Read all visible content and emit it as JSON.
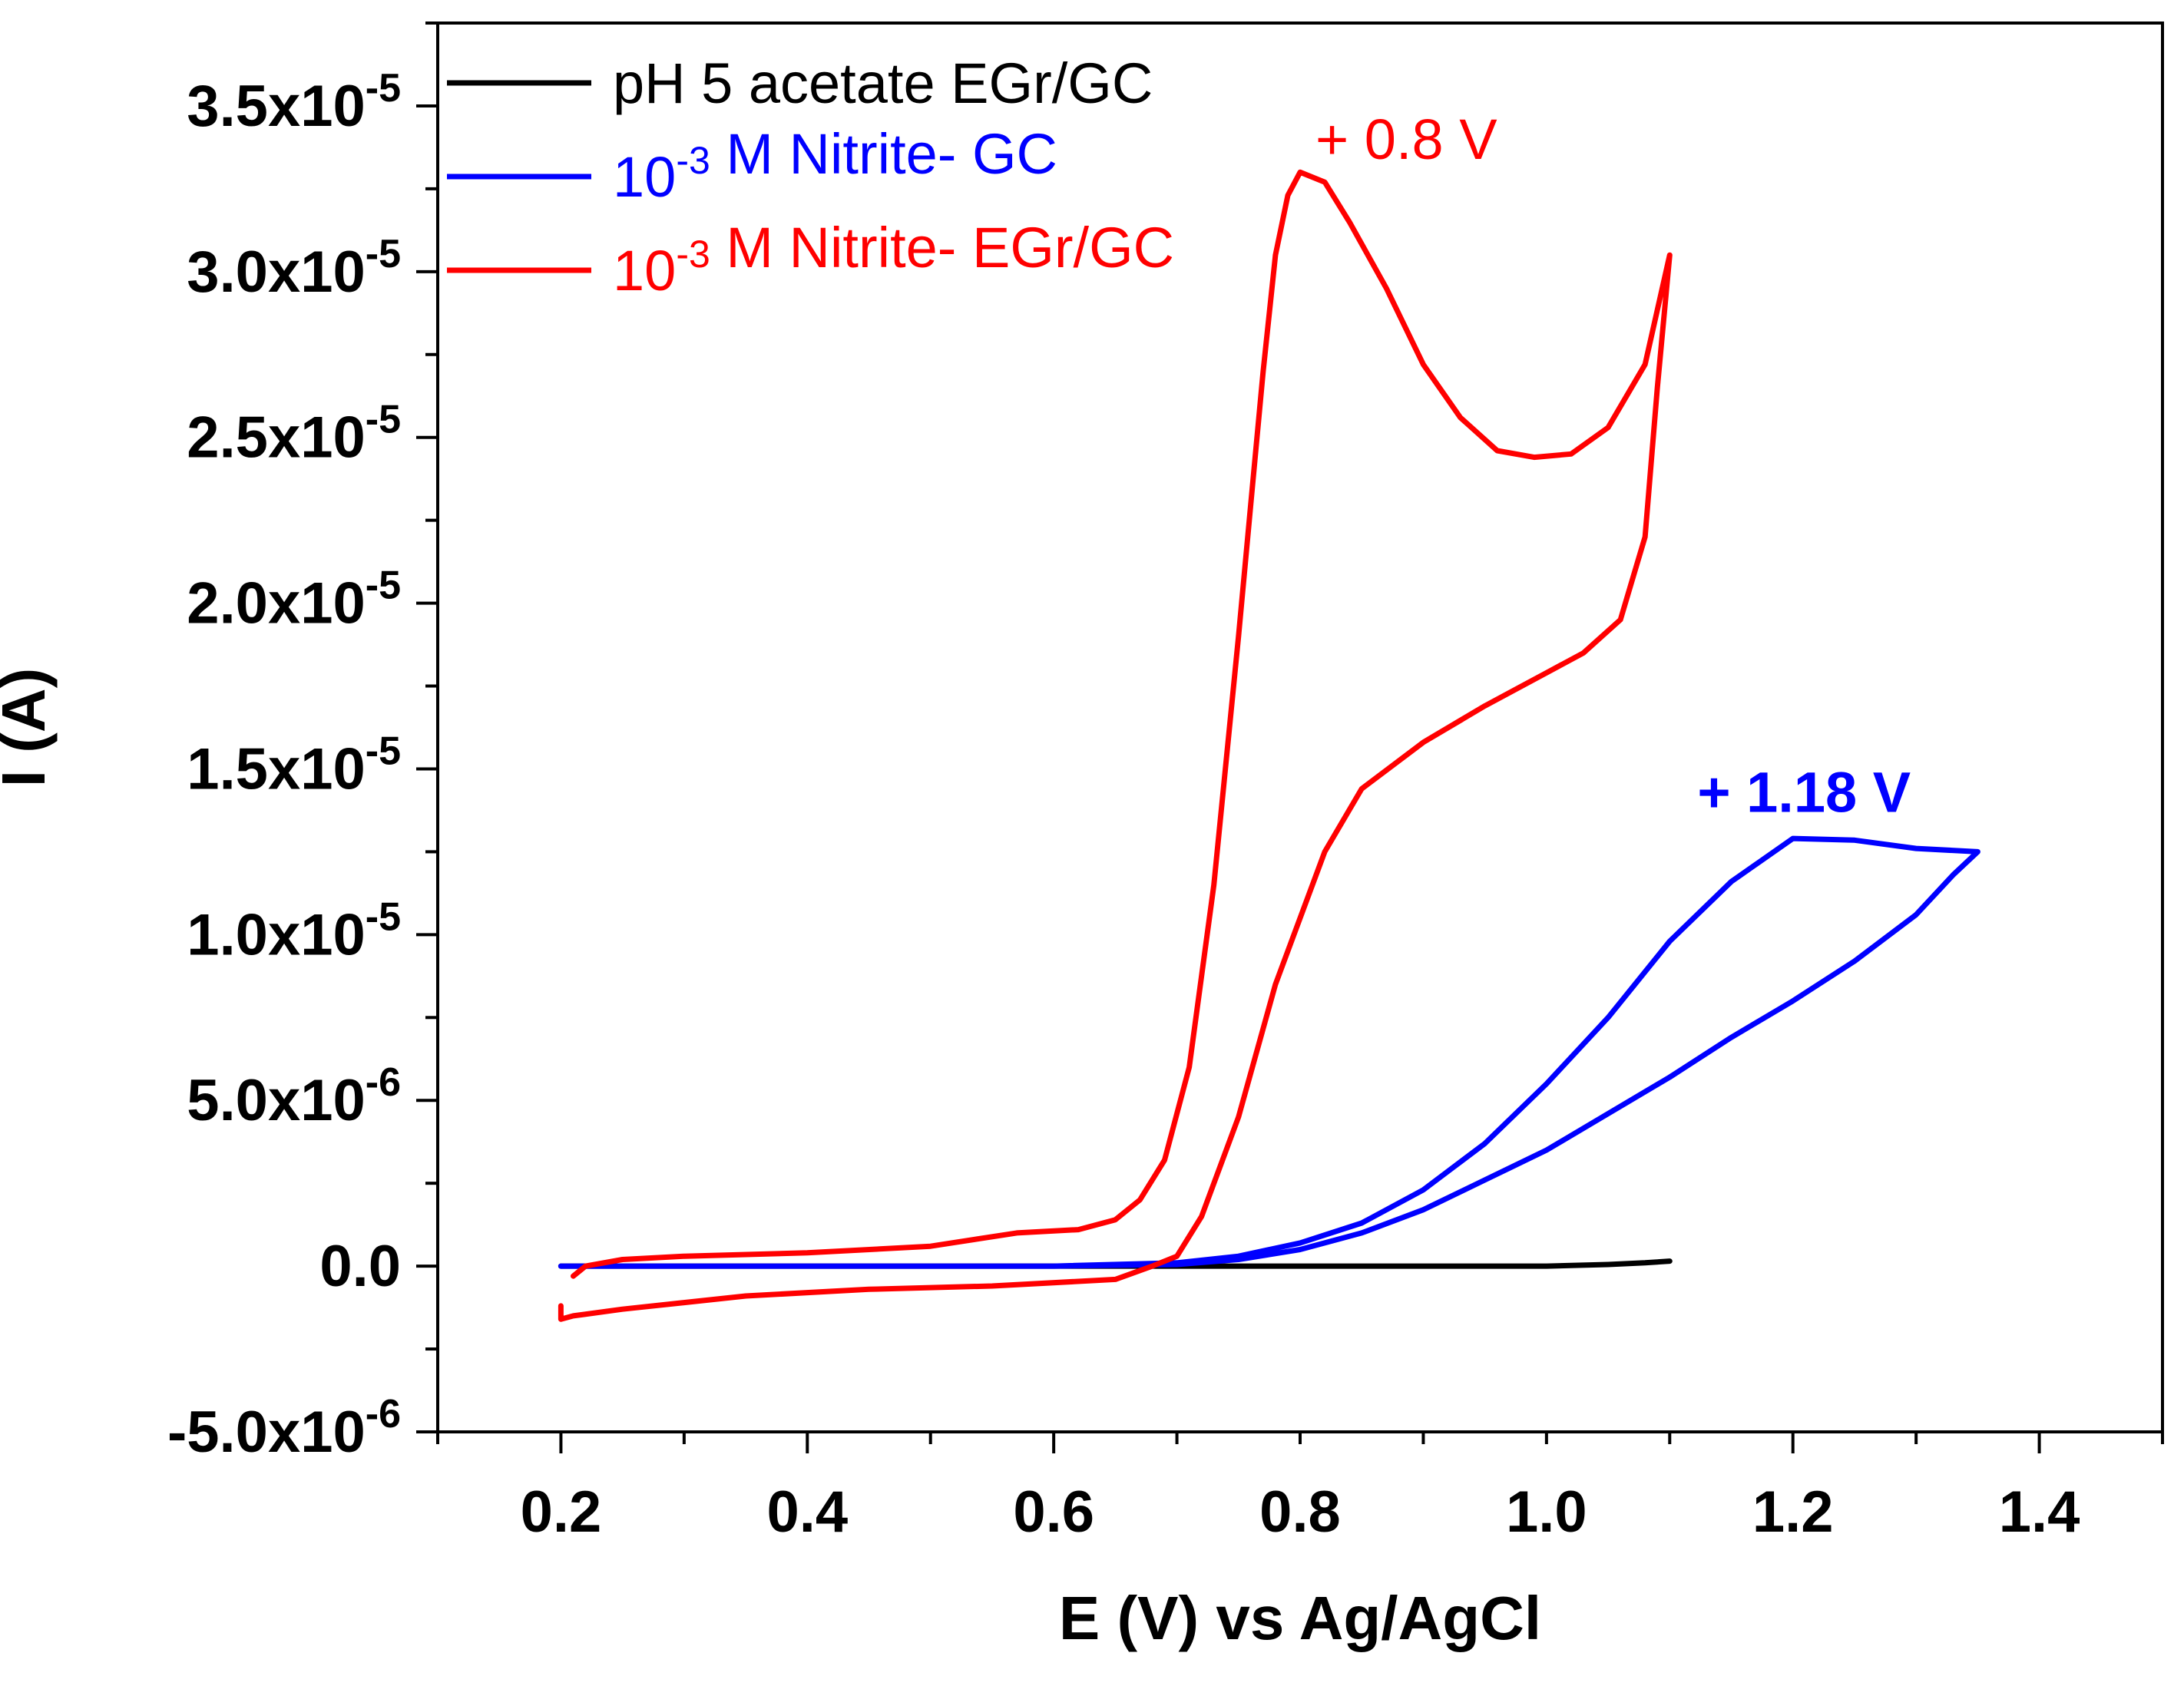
{
  "chart_data": {
    "type": "line",
    "title": "",
    "xlabel": "E (V) vs Ag/AgCl",
    "ylabel": "I (A)",
    "xlim": [
      0.1,
      1.5
    ],
    "ylim": [
      -5e-06,
      3.75e-05
    ],
    "x_ticks": [
      {
        "value": 0.2,
        "label": "0.2"
      },
      {
        "value": 0.4,
        "label": "0.4"
      },
      {
        "value": 0.6,
        "label": "0.6"
      },
      {
        "value": 0.8,
        "label": "0.8"
      },
      {
        "value": 1.0,
        "label": "1.0"
      },
      {
        "value": 1.2,
        "label": "1.2"
      },
      {
        "value": 1.4,
        "label": "1.4"
      }
    ],
    "y_ticks": [
      {
        "value": -5e-06,
        "mantissa": "-5.0x10",
        "exponent": "-6"
      },
      {
        "value": 0,
        "mantissa": "0.0",
        "exponent": ""
      },
      {
        "value": 5e-06,
        "mantissa": "5.0x10",
        "exponent": "-6"
      },
      {
        "value": 1e-05,
        "mantissa": "1.0x10",
        "exponent": "-5"
      },
      {
        "value": 1.5e-05,
        "mantissa": "1.5x10",
        "exponent": "-5"
      },
      {
        "value": 2e-05,
        "mantissa": "2.0x10",
        "exponent": "-5"
      },
      {
        "value": 2.5e-05,
        "mantissa": "2.5x10",
        "exponent": "-5"
      },
      {
        "value": 3e-05,
        "mantissa": "3.0x10",
        "exponent": "-5"
      },
      {
        "value": 3.5e-05,
        "mantissa": "3.5x10",
        "exponent": "-5"
      }
    ],
    "legend_position": "top-left",
    "series": [
      {
        "name": "pH 5 acetate EGr/GC",
        "legend_parts": [
          {
            "text": "pH 5 acetate EGr/GC",
            "sup": ""
          }
        ],
        "color": "#000000",
        "points": [
          [
            0.2,
            0.0
          ],
          [
            0.4,
            0.0
          ],
          [
            0.6,
            0.0
          ],
          [
            0.8,
            0.0
          ],
          [
            0.9,
            0.0
          ],
          [
            1.0,
            0.0
          ],
          [
            1.05,
            5e-08
          ],
          [
            1.08,
            1e-07
          ],
          [
            1.1,
            1.5e-07
          ]
        ]
      },
      {
        "name": "10-3 M Nitrite- GC",
        "legend_parts": [
          {
            "text": "10",
            "sup": "-3"
          },
          {
            "text": " M Nitrite- GC",
            "sup": ""
          }
        ],
        "color": "#0000ff",
        "points": [
          [
            0.2,
            0.0
          ],
          [
            0.4,
            0.0
          ],
          [
            0.6,
            0.0
          ],
          [
            0.7,
            1e-07
          ],
          [
            0.75,
            3e-07
          ],
          [
            0.8,
            7e-07
          ],
          [
            0.85,
            1.3e-06
          ],
          [
            0.9,
            2.3e-06
          ],
          [
            0.95,
            3.7e-06
          ],
          [
            1.0,
            5.5e-06
          ],
          [
            1.05,
            7.5e-06
          ],
          [
            1.1,
            9.8e-06
          ],
          [
            1.15,
            1.16e-05
          ],
          [
            1.2,
            1.29e-05
          ],
          [
            1.25,
            1.285e-05
          ],
          [
            1.3,
            1.26e-05
          ],
          [
            1.35,
            1.25e-05
          ],
          [
            1.33,
            1.18e-05
          ],
          [
            1.3,
            1.06e-05
          ],
          [
            1.25,
            9.2e-06
          ],
          [
            1.2,
            8e-06
          ],
          [
            1.15,
            6.9e-06
          ],
          [
            1.1,
            5.7e-06
          ],
          [
            1.05,
            4.6e-06
          ],
          [
            1.0,
            3.5e-06
          ],
          [
            0.95,
            2.6e-06
          ],
          [
            0.9,
            1.7e-06
          ],
          [
            0.85,
            1e-06
          ],
          [
            0.8,
            5e-07
          ],
          [
            0.75,
            2e-07
          ],
          [
            0.7,
            5e-08
          ],
          [
            0.6,
            0.0
          ],
          [
            0.4,
            0.0
          ],
          [
            0.2,
            0.0
          ]
        ]
      },
      {
        "name": "10-3 M Nitrite- EGr/GC",
        "legend_parts": [
          {
            "text": "10",
            "sup": "-3"
          },
          {
            "text": " M Nitrite- EGr/GC",
            "sup": ""
          }
        ],
        "color": "#ff0000",
        "points": [
          [
            0.21,
            -3e-07
          ],
          [
            0.22,
            0.0
          ],
          [
            0.25,
            2e-07
          ],
          [
            0.3,
            3e-07
          ],
          [
            0.4,
            4e-07
          ],
          [
            0.5,
            6e-07
          ],
          [
            0.57,
            1e-06
          ],
          [
            0.62,
            1.1e-06
          ],
          [
            0.65,
            1.4e-06
          ],
          [
            0.67,
            2e-06
          ],
          [
            0.69,
            3.2e-06
          ],
          [
            0.71,
            6e-06
          ],
          [
            0.73,
            1.15e-05
          ],
          [
            0.75,
            1.9e-05
          ],
          [
            0.76,
            2.3e-05
          ],
          [
            0.77,
            2.7e-05
          ],
          [
            0.78,
            3.05e-05
          ],
          [
            0.79,
            3.23e-05
          ],
          [
            0.8,
            3.3e-05
          ],
          [
            0.82,
            3.27e-05
          ],
          [
            0.84,
            3.15e-05
          ],
          [
            0.87,
            2.95e-05
          ],
          [
            0.9,
            2.72e-05
          ],
          [
            0.93,
            2.56e-05
          ],
          [
            0.96,
            2.46e-05
          ],
          [
            0.99,
            2.44e-05
          ],
          [
            1.02,
            2.45e-05
          ],
          [
            1.05,
            2.53e-05
          ],
          [
            1.08,
            2.72e-05
          ],
          [
            1.1,
            3.05e-05
          ],
          [
            1.09,
            2.65e-05
          ],
          [
            1.08,
            2.2e-05
          ],
          [
            1.06,
            1.95e-05
          ],
          [
            1.03,
            1.85e-05
          ],
          [
            1.0,
            1.79e-05
          ],
          [
            0.95,
            1.69e-05
          ],
          [
            0.9,
            1.58e-05
          ],
          [
            0.85,
            1.44e-05
          ],
          [
            0.82,
            1.25e-05
          ],
          [
            0.78,
            8.5e-06
          ],
          [
            0.75,
            4.5e-06
          ],
          [
            0.72,
            1.5e-06
          ],
          [
            0.7,
            3e-07
          ],
          [
            0.68,
            0.0
          ],
          [
            0.65,
            -4e-07
          ],
          [
            0.55,
            -6e-07
          ],
          [
            0.45,
            -7e-07
          ],
          [
            0.35,
            -9e-07
          ],
          [
            0.25,
            -1.3e-06
          ],
          [
            0.21,
            -1.5e-06
          ],
          [
            0.2,
            -1.6e-06
          ],
          [
            0.2,
            -1.2e-06
          ]
        ]
      }
    ],
    "annotations": [
      {
        "text": "+ 0.8 V",
        "x": 0.8,
        "y": 3.4e-05,
        "color": "#ff0000",
        "bold": false
      },
      {
        "text": "+ 1.18 V",
        "x": 1.11,
        "y": 1.43e-05,
        "color": "#0000ff",
        "bold": true
      }
    ]
  }
}
